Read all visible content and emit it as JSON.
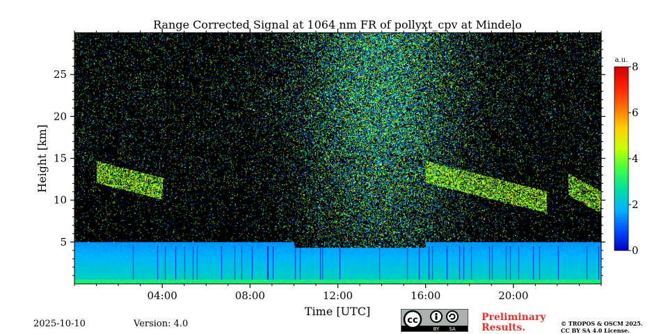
{
  "chart_data": {
    "type": "heatmap",
    "title": "Range Corrected Signal at 1064 nm FR of pollyxt_cpv at Mindelo",
    "xlabel": "Time [UTC]",
    "ylabel": "Height [km]",
    "xlim": [
      0,
      24
    ],
    "ylim": [
      0,
      30
    ],
    "x_ticks": [
      4,
      8,
      12,
      16,
      20
    ],
    "x_tick_labels": [
      "04:00",
      "08:00",
      "12:00",
      "16:00",
      "20:00"
    ],
    "y_ticks": [
      5,
      10,
      15,
      20,
      25
    ],
    "y_tick_labels": [
      "5",
      "10",
      "15",
      "20",
      "25"
    ],
    "colorbar": {
      "label": "a.u.",
      "range": [
        0,
        8
      ],
      "ticks": [
        "0",
        "2",
        "4",
        "6",
        "8"
      ],
      "colormap": "jet"
    },
    "features": {
      "boundary_layer_top_km": 5,
      "surface_layer_top_km": 0.5,
      "cirrus_layers": [
        {
          "start_h": 1.0,
          "end_h": 4.0,
          "base_km": 11.5,
          "top_km": 14.0
        },
        {
          "start_h": 16.0,
          "end_h": 21.5,
          "base_km": 9.5,
          "top_km": 14.0
        },
        {
          "start_h": 22.5,
          "end_h": 24.0,
          "base_km": 9.8,
          "top_km": 12.5
        }
      ],
      "noise_peak_h": 14
    }
  },
  "footer": {
    "date": "2025-10-10",
    "version": "Version: 4.0",
    "preliminary_line1": "Preliminary",
    "preliminary_line2": "Results.",
    "license_line1": "© TROPOS & OSCM 2025.",
    "license_line2": "CC BY SA 4.0 License.",
    "cc_badge": {
      "cc": "cc",
      "by": "BY",
      "sa": "SA"
    }
  },
  "colors": {
    "background": "#000000",
    "colormap_stops": [
      "#0000c8",
      "#0050ff",
      "#00b4ff",
      "#00e0a0",
      "#40ff40",
      "#c8ff00",
      "#ffd000",
      "#ff7000",
      "#ff2000",
      "#d00000"
    ],
    "preliminary": "#e8322c"
  }
}
